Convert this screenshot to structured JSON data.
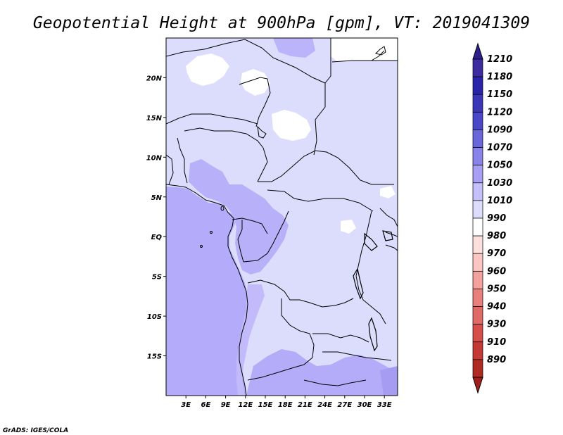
{
  "title": "Geopotential Height at 900hPa [gpm], VT: 2019041309",
  "credit": "GrADS: IGES/COLA",
  "map": {
    "lat_labels": [
      {
        "label": "20N",
        "lat": 20
      },
      {
        "label": "15N",
        "lat": 15
      },
      {
        "label": "10N",
        "lat": 10
      },
      {
        "label": "5N",
        "lat": 5
      },
      {
        "label": "EQ",
        "lat": 0
      },
      {
        "label": "5S",
        "lat": -5
      },
      {
        "label": "10S",
        "lat": -10
      },
      {
        "label": "15S",
        "lat": -15
      }
    ],
    "lon_labels": [
      {
        "label": "3E",
        "lon": 3
      },
      {
        "label": "6E",
        "lon": 6
      },
      {
        "label": "9E",
        "lon": 9
      },
      {
        "label": "12E",
        "lon": 12
      },
      {
        "label": "15E",
        "lon": 15
      },
      {
        "label": "18E",
        "lon": 18
      },
      {
        "label": "21E",
        "lon": 21
      },
      {
        "label": "24E",
        "lon": 24
      },
      {
        "label": "27E",
        "lon": 27
      },
      {
        "label": "30E",
        "lon": 30
      },
      {
        "label": "33E",
        "lon": 33
      }
    ],
    "extent": {
      "lon_min": 0,
      "lon_max": 35,
      "lat_min": -20,
      "lat_max": 25
    },
    "fill_colors": {
      "ocean": "#b4acfa",
      "land_low": "#dcdcfd",
      "land_mid": "#c4c4fc",
      "high": "#aca4f6",
      "highland_white": "#ffffff"
    }
  },
  "colorbar": {
    "levels": [
      {
        "label": "1210",
        "color": "#3c2ca0"
      },
      {
        "label": "1180",
        "color": "#2a24a8"
      },
      {
        "label": "1150",
        "color": "#3a36b8"
      },
      {
        "label": "1120",
        "color": "#4a48c8"
      },
      {
        "label": "1090",
        "color": "#6a66dc"
      },
      {
        "label": "1070",
        "color": "#8a84ea"
      },
      {
        "label": "1050",
        "color": "#a89ef4"
      },
      {
        "label": "1030",
        "color": "#c6c0fa"
      },
      {
        "label": "1010",
        "color": "#dedcfd"
      },
      {
        "label": "990",
        "color": "#ffffff"
      },
      {
        "label": "980",
        "color": "#fde0de"
      },
      {
        "label": "970",
        "color": "#fbc6c2"
      },
      {
        "label": "960",
        "color": "#f3a19d"
      },
      {
        "label": "950",
        "color": "#ea807c"
      },
      {
        "label": "940",
        "color": "#e06a66"
      },
      {
        "label": "930",
        "color": "#d64e4a"
      },
      {
        "label": "910",
        "color": "#c43a36"
      },
      {
        "label": "890",
        "color": "#b02a24"
      }
    ],
    "top_triangle_color": "#2e1f8e",
    "bottom_triangle_color": "#a11e1a"
  }
}
